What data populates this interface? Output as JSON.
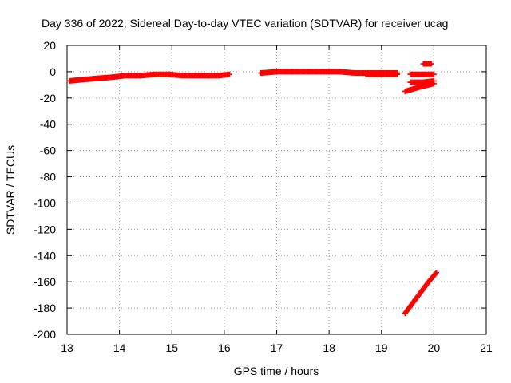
{
  "chart_data": {
    "type": "scatter",
    "title": "Day 336 of 2022, Sidereal Day-to-day VTEC variation (SDTVAR) for receiver ucag",
    "xlabel": "GPS time / hours",
    "ylabel": "SDTVAR / TECUs",
    "xlim": [
      13,
      21
    ],
    "ylim": [
      -200,
      20
    ],
    "xticks": [
      "13",
      "14",
      "15",
      "16",
      "17",
      "18",
      "19",
      "20",
      "21"
    ],
    "yticks": [
      "20",
      "0",
      "-20",
      "-40",
      "-60",
      "-80",
      "-100",
      "-120",
      "-140",
      "-160",
      "-180",
      "-200"
    ],
    "grid": true,
    "marker_color": "#ff0000",
    "series": [
      {
        "segments": [
          {
            "x": [
              13.05,
              13.3,
              13.6,
              13.9,
              14.1,
              14.4,
              14.7,
              14.95
            ],
            "y": [
              -7,
              -6,
              -5,
              -4,
              -3,
              -3,
              -2,
              -2
            ]
          },
          {
            "x": [
              14.95,
              15.2,
              15.45,
              15.7,
              15.9,
              16.1
            ],
            "y": [
              -2,
              -3,
              -3,
              -3,
              -3,
              -2
            ]
          },
          {
            "x": [
              16.7,
              17.0,
              17.3,
              17.6,
              17.9,
              18.2,
              18.5,
              18.8,
              19.0,
              19.3
            ],
            "y": [
              -1,
              0,
              0,
              0,
              0,
              0,
              -1,
              -1,
              -1,
              -1
            ]
          },
          {
            "x": [
              18.7,
              19.0,
              19.3
            ],
            "y": [
              -2,
              -2,
              -2
            ]
          },
          {
            "x": [
              19.55,
              19.8,
              20.0
            ],
            "y": [
              -2,
              -2,
              -2
            ]
          },
          {
            "x": [
              19.55,
              19.8,
              20.0
            ],
            "y": [
              -8,
              -8,
              -7
            ]
          },
          {
            "x": [
              19.45,
              19.7,
              20.0
            ],
            "y": [
              -15,
              -12,
              -9
            ]
          },
          {
            "x": [
              19.8,
              19.95
            ],
            "y": [
              6,
              6
            ]
          },
          {
            "x": [
              19.45,
              19.6,
              19.75,
              19.9,
              20.05
            ],
            "y": [
              -184,
              -176,
              -168,
              -160,
              -153
            ]
          }
        ]
      }
    ]
  }
}
